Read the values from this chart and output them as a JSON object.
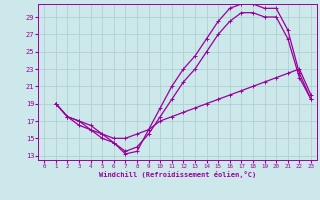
{
  "xlabel": "Windchill (Refroidissement éolien,°C)",
  "bg_color": "#cce8ea",
  "grid_color": "#aacccc",
  "line_color": "#990099",
  "xlim": [
    -0.5,
    23.5
  ],
  "ylim": [
    12.5,
    30.5
  ],
  "yticks": [
    13,
    15,
    17,
    19,
    21,
    23,
    25,
    27,
    29
  ],
  "xticks": [
    0,
    1,
    2,
    3,
    4,
    5,
    6,
    7,
    8,
    9,
    10,
    11,
    12,
    13,
    14,
    15,
    16,
    17,
    18,
    19,
    20,
    21,
    22,
    23
  ],
  "line1_x": [
    1,
    2,
    3,
    4,
    5,
    6,
    7,
    8,
    9,
    10,
    11,
    12,
    13,
    14,
    15,
    16,
    17,
    18,
    19,
    20,
    21,
    22,
    23
  ],
  "line1_y": [
    19.0,
    17.5,
    16.5,
    16.0,
    15.5,
    15.0,
    15.0,
    15.5,
    16.0,
    17.0,
    17.5,
    18.0,
    18.5,
    19.0,
    19.5,
    20.0,
    20.5,
    21.0,
    21.5,
    22.0,
    22.5,
    23.0,
    20.0
  ],
  "line2_x": [
    1,
    2,
    3,
    4,
    5,
    6,
    7,
    8,
    9,
    10,
    11,
    12,
    13,
    14,
    15,
    16,
    17,
    18,
    19,
    20,
    21,
    22,
    23
  ],
  "line2_y": [
    19.0,
    17.5,
    17.0,
    16.5,
    15.5,
    14.5,
    13.5,
    14.0,
    15.5,
    17.5,
    19.5,
    21.5,
    23.0,
    25.0,
    27.0,
    28.5,
    29.5,
    29.5,
    29.0,
    29.0,
    26.5,
    22.0,
    19.5
  ],
  "line3_x": [
    1,
    2,
    3,
    4,
    5,
    6,
    7,
    8,
    9,
    10,
    11,
    12,
    13,
    14,
    15,
    16,
    17,
    18,
    19,
    20,
    21,
    22,
    23
  ],
  "line3_y": [
    19.0,
    17.5,
    17.0,
    16.0,
    15.0,
    14.5,
    13.2,
    13.5,
    16.0,
    18.5,
    21.0,
    23.0,
    24.5,
    26.5,
    28.5,
    30.0,
    30.5,
    30.5,
    30.0,
    30.0,
    27.5,
    22.5,
    19.5
  ]
}
